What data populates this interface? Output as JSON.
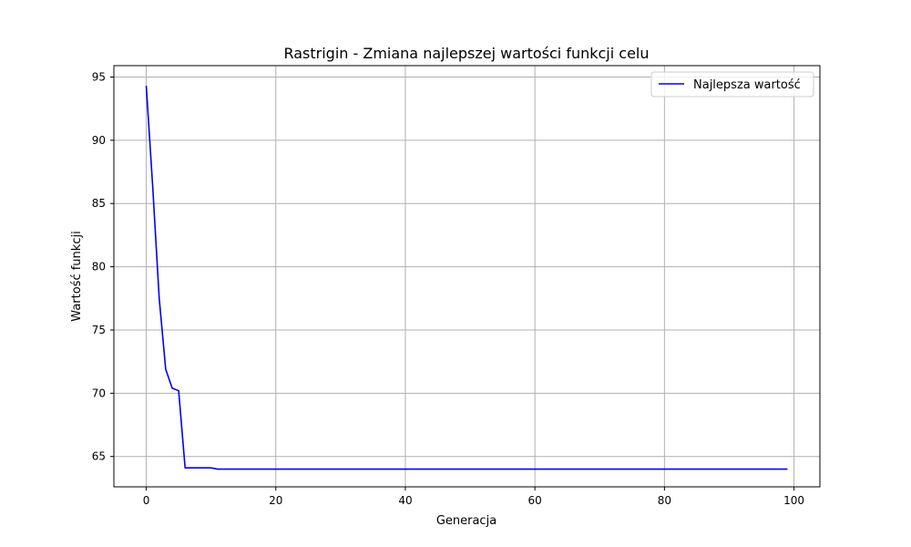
{
  "chart_data": {
    "type": "line",
    "title": "Rastrigin - Zmiana najlepszej wartości funkcji celu",
    "xlabel": "Generacja",
    "ylabel": "Wartość funkcji",
    "xlim": [
      -5,
      104
    ],
    "ylim": [
      62.6,
      95.9
    ],
    "xticks": [
      0,
      20,
      40,
      60,
      80,
      100
    ],
    "yticks": [
      65,
      70,
      75,
      80,
      85,
      90,
      95
    ],
    "grid": true,
    "legend": {
      "position": "top-right",
      "entries": [
        "Najlepsza wartość"
      ]
    },
    "series": [
      {
        "name": "Najlepsza wartość",
        "color": "#0000ff",
        "x": [
          0,
          1,
          2,
          3,
          4,
          5,
          6,
          7,
          8,
          9,
          10,
          11,
          12,
          13,
          14,
          15,
          16,
          17,
          18,
          19,
          20,
          21,
          22,
          23,
          24,
          25,
          26,
          27,
          28,
          29,
          30,
          31,
          32,
          33,
          34,
          35,
          36,
          37,
          38,
          39,
          40,
          41,
          42,
          43,
          44,
          45,
          46,
          47,
          48,
          49,
          50,
          51,
          52,
          53,
          54,
          55,
          56,
          57,
          58,
          59,
          60,
          61,
          62,
          63,
          64,
          65,
          66,
          67,
          68,
          69,
          70,
          71,
          72,
          73,
          74,
          75,
          76,
          77,
          78,
          79,
          80,
          81,
          82,
          83,
          84,
          85,
          86,
          87,
          88,
          89,
          90,
          91,
          92,
          93,
          94,
          95,
          96,
          97,
          98,
          99
        ],
        "values": [
          94.3,
          86.3,
          77.5,
          71.9,
          70.4,
          70.2,
          64.1,
          64.1,
          64.1,
          64.1,
          64.1,
          64.0,
          64.0,
          64.0,
          64.0,
          64.0,
          64.0,
          64.0,
          64.0,
          64.0,
          64.0,
          64.0,
          64.0,
          64.0,
          64.0,
          64.0,
          64.0,
          64.0,
          64.0,
          64.0,
          64.0,
          64.0,
          64.0,
          64.0,
          64.0,
          64.0,
          64.0,
          64.0,
          64.0,
          64.0,
          64.0,
          64.0,
          64.0,
          64.0,
          64.0,
          64.0,
          64.0,
          64.0,
          64.0,
          64.0,
          64.0,
          64.0,
          64.0,
          64.0,
          64.0,
          64.0,
          64.0,
          64.0,
          64.0,
          64.0,
          64.0,
          64.0,
          64.0,
          64.0,
          64.0,
          64.0,
          64.0,
          64.0,
          64.0,
          64.0,
          64.0,
          64.0,
          64.0,
          64.0,
          64.0,
          64.0,
          64.0,
          64.0,
          64.0,
          64.0,
          64.0,
          64.0,
          64.0,
          64.0,
          64.0,
          64.0,
          64.0,
          64.0,
          64.0,
          64.0,
          64.0,
          64.0,
          64.0,
          64.0,
          64.0,
          64.0,
          64.0,
          64.0,
          64.0,
          64.0
        ]
      }
    ]
  }
}
